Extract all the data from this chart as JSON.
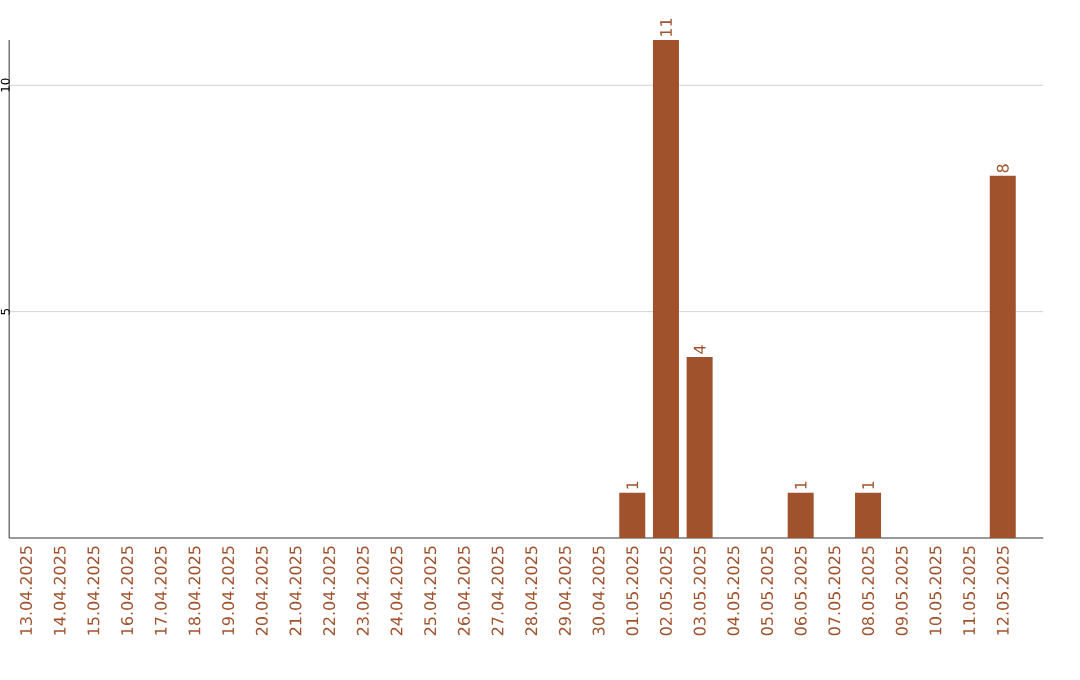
{
  "chart_data": {
    "type": "bar",
    "categories": [
      "13.04.2025",
      "14.04.2025",
      "15.04.2025",
      "16.04.2025",
      "17.04.2025",
      "18.04.2025",
      "19.04.2025",
      "20.04.2025",
      "21.04.2025",
      "22.04.2025",
      "23.04.2025",
      "24.04.2025",
      "25.04.2025",
      "26.04.2025",
      "27.04.2025",
      "28.04.2025",
      "29.04.2025",
      "30.04.2025",
      "01.05.2025",
      "02.05.2025",
      "03.05.2025",
      "04.05.2025",
      "05.05.2025",
      "06.05.2025",
      "07.05.2025",
      "08.05.2025",
      "09.05.2025",
      "10.05.2025",
      "11.05.2025",
      "12.05.2025"
    ],
    "values": [
      0,
      0,
      0,
      0,
      0,
      0,
      0,
      0,
      0,
      0,
      0,
      0,
      0,
      0,
      0,
      0,
      0,
      0,
      1,
      11,
      4,
      0,
      0,
      1,
      0,
      1,
      0,
      0,
      0,
      8
    ],
    "value_labels": [
      null,
      null,
      null,
      null,
      null,
      null,
      null,
      null,
      null,
      null,
      null,
      null,
      null,
      null,
      null,
      null,
      null,
      null,
      "1",
      "11",
      "4",
      null,
      null,
      "1",
      null,
      "1",
      null,
      null,
      null,
      "8"
    ],
    "color": "#a0522d",
    "ylim": [
      0,
      11
    ],
    "yticks": [
      5,
      10
    ],
    "grid": "y"
  }
}
